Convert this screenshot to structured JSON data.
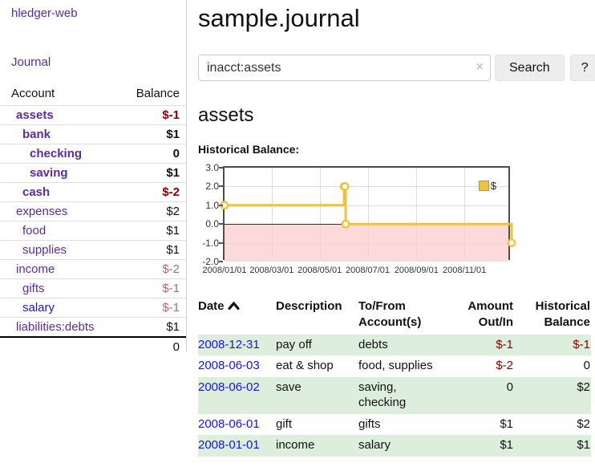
{
  "app": {
    "title": "hledger-web",
    "nav_journal": "Journal"
  },
  "sidebar": {
    "header": {
      "account": "Account",
      "balance": "Balance"
    },
    "accounts": [
      {
        "label": "assets",
        "level": 1,
        "bold": true,
        "balance": "$-1",
        "negative": "strong"
      },
      {
        "label": "bank",
        "level": 2,
        "bold": true,
        "balance": "$1",
        "negative": null
      },
      {
        "label": "checking",
        "level": 3,
        "bold": true,
        "balance": "0",
        "negative": null
      },
      {
        "label": "saving",
        "level": 3,
        "bold": true,
        "balance": "$1",
        "negative": null
      },
      {
        "label": "cash",
        "level": 2,
        "bold": true,
        "balance": "$-2",
        "negative": "strong"
      },
      {
        "label": "expenses",
        "level": 1,
        "bold": false,
        "balance": "$2",
        "negative": null
      },
      {
        "label": "food",
        "level": 2,
        "bold": false,
        "balance": "$1",
        "negative": null
      },
      {
        "label": "supplies",
        "level": 2,
        "bold": false,
        "balance": "$1",
        "negative": null
      },
      {
        "label": "income",
        "level": 1,
        "bold": false,
        "balance": "$-2",
        "negative": "light"
      },
      {
        "label": "gifts",
        "level": 2,
        "bold": false,
        "balance": "$-1",
        "negative": "light"
      },
      {
        "label": "salary",
        "level": 2,
        "bold": false,
        "balance": "$-1",
        "negative": "light",
        "link": "blue"
      },
      {
        "label": "liabilities:debts",
        "level": 1,
        "bold": false,
        "balance": "$1",
        "negative": null
      }
    ],
    "total": "0"
  },
  "main": {
    "title": "sample.journal",
    "search": {
      "value": "inacct:assets",
      "clear_icon": "×",
      "search_button": "Search",
      "help_button": "?"
    },
    "account_heading": "assets",
    "chart_label": "Historical Balance:"
  },
  "chart_data": {
    "type": "line",
    "title": "Historical Balance:",
    "step": true,
    "series": [
      {
        "name": "$",
        "color": "#EDC240",
        "points": [
          [
            "2008-01-01",
            1
          ],
          [
            "2008-06-01",
            2
          ],
          [
            "2008-06-02",
            2
          ],
          [
            "2008-06-03",
            0
          ],
          [
            "2008-12-31",
            -1
          ]
        ]
      }
    ],
    "xrange": [
      "2008-01-01",
      "2008-12-31"
    ],
    "ylim": [
      -2,
      3
    ],
    "yticks": [
      3.0,
      2.0,
      1.0,
      0.0,
      -1.0,
      -2.0
    ],
    "xticks": [
      "2008/01/01",
      "2008/03/01",
      "2008/05/01",
      "2008/07/01",
      "2008/09/01",
      "2008/11/01"
    ],
    "legend": {
      "label": "$",
      "position": "top-right"
    },
    "grid": true
  },
  "register": {
    "columns": [
      {
        "label": "Date",
        "sortable": true,
        "align": "left"
      },
      {
        "label": "Description",
        "align": "left"
      },
      {
        "label": "To/From Account(s)",
        "align": "left"
      },
      {
        "label": "Amount Out/In",
        "align": "right"
      },
      {
        "label": "Historical Balance",
        "align": "right"
      }
    ],
    "rows": [
      {
        "date": "2008-12-31",
        "description": "pay off",
        "accounts": "debts",
        "amount": "$-1",
        "balance": "$-1"
      },
      {
        "date": "2008-06-03",
        "description": "eat & shop",
        "accounts": "food, supplies",
        "amount": "$-2",
        "balance": "0"
      },
      {
        "date": "2008-06-02",
        "description": "save",
        "accounts": "saving, checking",
        "amount": "0",
        "balance": "$2"
      },
      {
        "date": "2008-06-01",
        "description": "gift",
        "accounts": "gifts",
        "amount": "$1",
        "balance": "$2"
      },
      {
        "date": "2008-01-01",
        "description": "income",
        "accounts": "salary",
        "amount": "$1",
        "balance": "$1"
      }
    ]
  },
  "colors": {
    "link_purple": "#5e2b9d",
    "link_blue": "#1515e0",
    "negative_strong": "#8b0000",
    "negative_light": "#b36a6a",
    "row_green": "#ddeedd",
    "series_gold": "#EDC240",
    "legend_swatch_border": "#b89a30",
    "negative_region_pink": "#fcdada",
    "zero_line_red": "#8b0000",
    "grid_gray": "#dcdcdc",
    "chart_border": "#4d4d4d"
  }
}
